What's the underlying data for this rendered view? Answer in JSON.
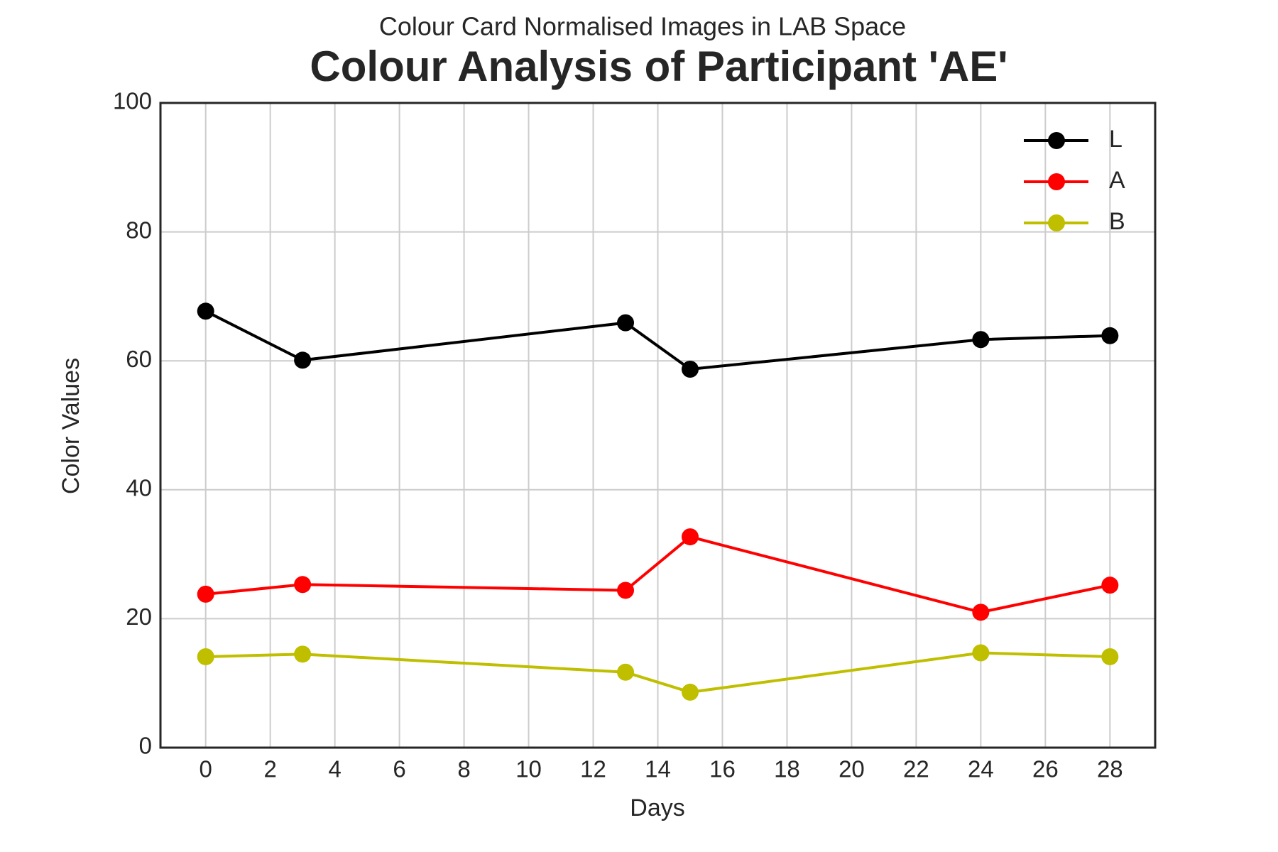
{
  "chart_data": {
    "type": "line",
    "subtitle": "Colour Card Normalised Images in LAB Space",
    "title": "Colour Analysis of Participant 'AE'",
    "x_label": "Days",
    "y_label": "Color Values",
    "x": [
      0,
      3,
      13,
      15,
      24,
      28
    ],
    "series": [
      {
        "name": "L",
        "color": "#000000",
        "values": [
          67.7,
          60.1,
          65.9,
          58.7,
          63.3,
          63.9
        ]
      },
      {
        "name": "A",
        "color": "#ff0000",
        "values": [
          23.8,
          25.3,
          24.4,
          32.7,
          21.0,
          25.2
        ]
      },
      {
        "name": "B",
        "color": "#bfbf00",
        "values": [
          14.1,
          14.5,
          11.7,
          8.6,
          14.7,
          14.1
        ]
      }
    ],
    "xlim": [
      -1.4,
      29.4
    ],
    "xticks": [
      0,
      2,
      4,
      6,
      8,
      10,
      12,
      14,
      16,
      18,
      20,
      22,
      24,
      26,
      28
    ],
    "ylim": [
      0,
      100
    ],
    "yticks": [
      0,
      20,
      40,
      60,
      80,
      100
    ],
    "grid": true,
    "legend": "upper right"
  }
}
